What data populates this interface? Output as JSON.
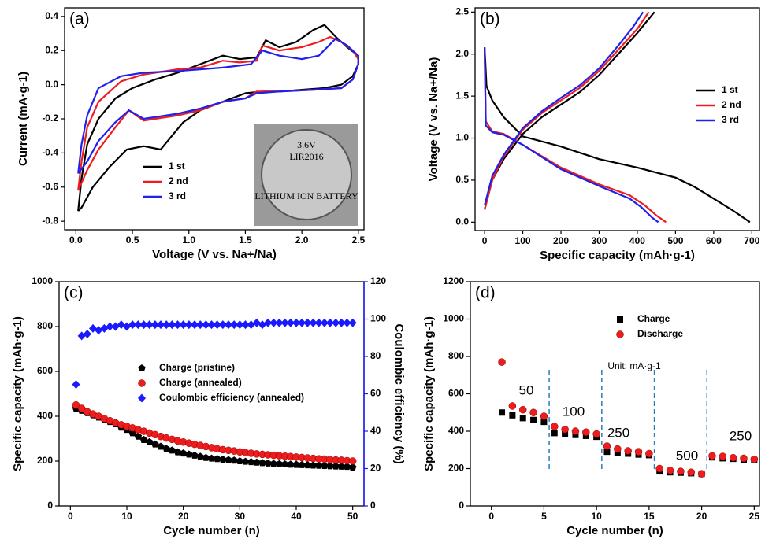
{
  "chart_data": [
    {
      "type": "line",
      "title": "(a)",
      "x_label": "Voltage (V vs. Na+/Na)",
      "y_label": "Current (mA·g-1)",
      "xlim": [
        -0.1,
        2.55
      ],
      "xticks": [
        {
          "value": 0,
          "label": "0.0"
        },
        0.5,
        {
          "value": 1,
          "label": "1.0"
        },
        1.5,
        {
          "value": 2,
          "label": "2.0"
        },
        2.5
      ],
      "ylim": [
        -0.85,
        0.45
      ],
      "yticks": [
        -0.8,
        -0.6,
        -0.4,
        -0.2,
        {
          "value": 0,
          "label": "0.0"
        },
        0.2,
        0.4
      ],
      "legend": "lower left",
      "inset_texts": [
        "3.6V",
        "LIR2016",
        "LITHIUM ION BATTERY"
      ],
      "series": [
        {
          "name": "1 st",
          "color": "#000000",
          "x": [
            0.02,
            0.05,
            0.1,
            0.2,
            0.35,
            0.5,
            0.7,
            0.9,
            1.1,
            1.3,
            1.45,
            1.6,
            1.68,
            1.8,
            1.95,
            2.1,
            2.2,
            2.3,
            2.4,
            2.5,
            2.5,
            2.45,
            2.35,
            2.2,
            2.0,
            1.8,
            1.65,
            1.5,
            1.3,
            1.1,
            0.95,
            0.85,
            0.75,
            0.6,
            0.45,
            0.3,
            0.15,
            0.05,
            0.02
          ],
          "values": [
            -0.74,
            -0.55,
            -0.35,
            -0.2,
            -0.08,
            -0.02,
            0.03,
            0.07,
            0.12,
            0.17,
            0.15,
            0.16,
            0.26,
            0.22,
            0.25,
            0.32,
            0.35,
            0.28,
            0.22,
            0.17,
            0.12,
            0.05,
            0,
            -0.02,
            -0.03,
            -0.04,
            -0.04,
            -0.05,
            -0.1,
            -0.15,
            -0.22,
            -0.3,
            -0.38,
            -0.36,
            -0.38,
            -0.48,
            -0.6,
            -0.72,
            -0.74
          ]
        },
        {
          "name": "2 nd",
          "color": "#ee1c1c",
          "x": [
            0.02,
            0.05,
            0.1,
            0.2,
            0.4,
            0.6,
            0.9,
            1.1,
            1.3,
            1.45,
            1.6,
            1.65,
            1.8,
            2.0,
            2.15,
            2.25,
            2.35,
            2.45,
            2.5,
            2.5,
            2.45,
            2.35,
            2.1,
            1.8,
            1.6,
            1.5,
            1.3,
            1.1,
            0.9,
            0.7,
            0.6,
            0.47,
            0.35,
            0.2,
            0.1,
            0.02
          ],
          "values": [
            -0.62,
            -0.45,
            -0.25,
            -0.1,
            0.02,
            0.06,
            0.09,
            0.1,
            0.14,
            0.13,
            0.14,
            0.23,
            0.2,
            0.22,
            0.25,
            0.28,
            0.25,
            0.2,
            0.15,
            0.12,
            0.03,
            -0.02,
            -0.03,
            -0.04,
            -0.04,
            -0.08,
            -0.1,
            -0.15,
            -0.18,
            -0.2,
            -0.21,
            -0.15,
            -0.25,
            -0.38,
            -0.5,
            -0.62
          ]
        },
        {
          "name": "3 rd",
          "color": "#2020ee",
          "x": [
            0.02,
            0.05,
            0.1,
            0.2,
            0.4,
            0.6,
            0.9,
            1.1,
            1.3,
            1.55,
            1.65,
            1.8,
            2.0,
            2.15,
            2.3,
            2.4,
            2.5,
            2.5,
            2.45,
            2.35,
            2.1,
            1.8,
            1.6,
            1.5,
            1.3,
            1.1,
            0.9,
            0.7,
            0.6,
            0.47,
            0.35,
            0.2,
            0.1,
            0.02
          ],
          "values": [
            -0.52,
            -0.35,
            -0.18,
            -0.02,
            0.05,
            0.07,
            0.08,
            0.09,
            0.1,
            0.12,
            0.2,
            0.17,
            0.15,
            0.17,
            0.27,
            0.23,
            0.17,
            0.12,
            0.03,
            -0.02,
            -0.03,
            -0.04,
            -0.05,
            -0.08,
            -0.1,
            -0.14,
            -0.17,
            -0.19,
            -0.2,
            -0.15,
            -0.22,
            -0.33,
            -0.45,
            -0.52
          ]
        }
      ]
    },
    {
      "type": "line",
      "title": "(b)",
      "x_label": "Specific capacity (mAh·g-1)",
      "y_label": "Voltage (V vs. Na+/Na)",
      "xlim": [
        -25,
        720
      ],
      "xticks": [
        0,
        100,
        200,
        300,
        400,
        500,
        600,
        700
      ],
      "ylim": [
        -0.1,
        2.55
      ],
      "yticks": [
        {
          "value": 0,
          "label": "0.0"
        },
        0.5,
        {
          "value": 1,
          "label": "1.0"
        },
        1.5,
        {
          "value": 2,
          "label": "2.0"
        },
        2.5
      ],
      "legend": "center right",
      "series": [
        {
          "name": "1 st",
          "color": "#000000",
          "x": [
            0,
            5,
            20,
            50,
            100,
            200,
            300,
            400,
            500,
            550,
            600,
            650,
            695,
            null,
            0,
            20,
            50,
            100,
            150,
            200,
            250,
            300,
            350,
            400,
            445
          ],
          "values": [
            2.08,
            1.62,
            1.45,
            1.25,
            1.02,
            0.9,
            0.75,
            0.65,
            0.53,
            0.42,
            0.28,
            0.14,
            0,
            null,
            0.15,
            0.5,
            0.75,
            1.05,
            1.25,
            1.4,
            1.55,
            1.75,
            2.0,
            2.25,
            2.5
          ]
        },
        {
          "name": "2 nd",
          "color": "#ee1c1c",
          "x": [
            0,
            3,
            20,
            50,
            100,
            200,
            300,
            380,
            420,
            450,
            475,
            null,
            0,
            20,
            50,
            100,
            150,
            200,
            250,
            300,
            350,
            400,
            430
          ],
          "values": [
            2.08,
            1.2,
            1.08,
            1.05,
            0.92,
            0.65,
            0.45,
            0.32,
            0.2,
            0.08,
            0,
            null,
            0.15,
            0.5,
            0.78,
            1.1,
            1.3,
            1.45,
            1.6,
            1.8,
            2.05,
            2.3,
            2.5
          ]
        },
        {
          "name": "3 rd",
          "color": "#2020ee",
          "x": [
            0,
            3,
            20,
            50,
            100,
            200,
            300,
            380,
            410,
            440,
            455,
            null,
            0,
            20,
            50,
            100,
            150,
            200,
            250,
            300,
            350,
            390,
            415
          ],
          "values": [
            2.08,
            1.15,
            1.07,
            1.04,
            0.92,
            0.63,
            0.43,
            0.28,
            0.18,
            0.05,
            0,
            null,
            0.2,
            0.55,
            0.8,
            1.12,
            1.32,
            1.48,
            1.63,
            1.83,
            2.1,
            2.33,
            2.5
          ]
        }
      ]
    },
    {
      "type": "scatter",
      "title": "(c)",
      "x_label": "Cycle number (n)",
      "y_label": "Specific capacity (mAh·g-1)",
      "y2_label": "Coulombic efficiency (%)",
      "y2_color": "#1a1aff",
      "xlim": [
        -2,
        52
      ],
      "xticks": [
        0,
        10,
        20,
        30,
        40,
        50
      ],
      "ylim": [
        0,
        1000
      ],
      "yticks": [
        0,
        200,
        400,
        600,
        800,
        1000
      ],
      "y2lim": [
        0,
        120
      ],
      "y2ticks": [
        0,
        20,
        40,
        60,
        80,
        100,
        120
      ],
      "legend": "center",
      "series": [
        {
          "name": "Charge (pristine)",
          "color": "#000000",
          "marker": "pentagon",
          "x": [
            1,
            2,
            3,
            4,
            5,
            6,
            7,
            8,
            9,
            10,
            11,
            12,
            13,
            14,
            15,
            16,
            17,
            18,
            19,
            20,
            21,
            22,
            23,
            24,
            25,
            26,
            27,
            28,
            29,
            30,
            31,
            32,
            33,
            34,
            35,
            36,
            37,
            38,
            39,
            40,
            41,
            42,
            43,
            44,
            45,
            46,
            47,
            48,
            49,
            50
          ],
          "values": [
            435,
            425,
            415,
            405,
            395,
            385,
            375,
            365,
            350,
            340,
            325,
            310,
            295,
            285,
            275,
            265,
            255,
            248,
            240,
            235,
            230,
            225,
            220,
            215,
            212,
            210,
            207,
            205,
            203,
            200,
            198,
            196,
            194,
            192,
            190,
            188,
            187,
            186,
            185,
            184,
            183,
            182,
            181,
            180,
            179,
            178,
            177,
            176,
            175,
            172
          ]
        },
        {
          "name": "Charge (annealed)",
          "color": "#ee1c1c",
          "marker": "circle",
          "x": [
            1,
            2,
            3,
            4,
            5,
            6,
            7,
            8,
            9,
            10,
            11,
            12,
            13,
            14,
            15,
            16,
            17,
            18,
            19,
            20,
            21,
            22,
            23,
            24,
            25,
            26,
            27,
            28,
            29,
            30,
            31,
            32,
            33,
            34,
            35,
            36,
            37,
            38,
            39,
            40,
            41,
            42,
            43,
            44,
            45,
            46,
            47,
            48,
            49,
            50
          ],
          "values": [
            450,
            435,
            420,
            410,
            400,
            390,
            380,
            370,
            362,
            355,
            348,
            340,
            333,
            325,
            318,
            310,
            303,
            297,
            290,
            285,
            280,
            275,
            270,
            265,
            260,
            255,
            251,
            248,
            245,
            241,
            238,
            235,
            232,
            230,
            228,
            226,
            224,
            222,
            220,
            218,
            216,
            214,
            212,
            210,
            209,
            207,
            205,
            204,
            202,
            200
          ]
        },
        {
          "name": "Coulombic efficiency (annealed)",
          "color": "#1a1aff",
          "marker": "diamond",
          "axis": "y2",
          "x": [
            1,
            2,
            3,
            4,
            5,
            6,
            7,
            8,
            9,
            10,
            11,
            12,
            13,
            14,
            15,
            16,
            17,
            18,
            19,
            20,
            21,
            22,
            23,
            24,
            25,
            26,
            27,
            28,
            29,
            30,
            31,
            32,
            33,
            34,
            35,
            36,
            37,
            38,
            39,
            40,
            41,
            42,
            43,
            44,
            45,
            46,
            47,
            48,
            49,
            50
          ],
          "values": [
            65,
            91,
            92,
            95,
            94,
            95,
            96,
            96,
            97,
            96,
            97,
            97,
            97,
            97,
            97,
            97,
            97,
            97,
            97,
            97,
            97,
            97,
            97,
            97,
            97,
            97,
            97,
            97,
            97,
            97,
            97,
            97,
            98,
            97,
            98,
            98,
            98,
            98,
            98,
            98,
            98,
            98,
            98,
            98,
            98,
            98,
            98,
            98,
            98,
            98
          ]
        }
      ]
    },
    {
      "type": "scatter",
      "title": "(d)",
      "x_label": "Cycle number (n)",
      "y_label": "Specific capacity (mAh·g-1)",
      "xlim": [
        -2,
        25.5
      ],
      "xticks": [
        0,
        5,
        10,
        15,
        20,
        25
      ],
      "ylim": [
        0,
        1200
      ],
      "yticks": [
        0,
        200,
        400,
        600,
        800,
        1000,
        1200
      ],
      "legend": "upper center",
      "annotations": [
        "50",
        "100",
        "250",
        "500",
        "250",
        "Unit: mA·g-1"
      ],
      "dividers": [
        5.5,
        10.5,
        15.5,
        20.5
      ],
      "divider_color": "#2a7fb8",
      "series": [
        {
          "name": "Charge",
          "color": "#000000",
          "marker": "square",
          "x": [
            1,
            2,
            3,
            4,
            5,
            6,
            7,
            8,
            9,
            10,
            11,
            12,
            13,
            14,
            15,
            16,
            17,
            18,
            19,
            20,
            21,
            22,
            23,
            24,
            25
          ],
          "values": [
            500,
            485,
            470,
            460,
            450,
            390,
            385,
            380,
            375,
            370,
            290,
            285,
            280,
            275,
            272,
            185,
            180,
            178,
            175,
            172,
            260,
            255,
            252,
            248,
            245
          ]
        },
        {
          "name": "Discharge",
          "color": "#ee1c1c",
          "marker": "circle",
          "x": [
            1,
            2,
            3,
            4,
            5,
            6,
            7,
            8,
            9,
            10,
            11,
            12,
            13,
            14,
            15,
            16,
            17,
            18,
            19,
            20,
            21,
            22,
            23,
            24,
            25
          ],
          "values": [
            770,
            535,
            515,
            500,
            480,
            425,
            410,
            400,
            395,
            385,
            320,
            305,
            295,
            290,
            280,
            200,
            190,
            185,
            180,
            172,
            268,
            265,
            258,
            255,
            250
          ]
        }
      ]
    }
  ]
}
